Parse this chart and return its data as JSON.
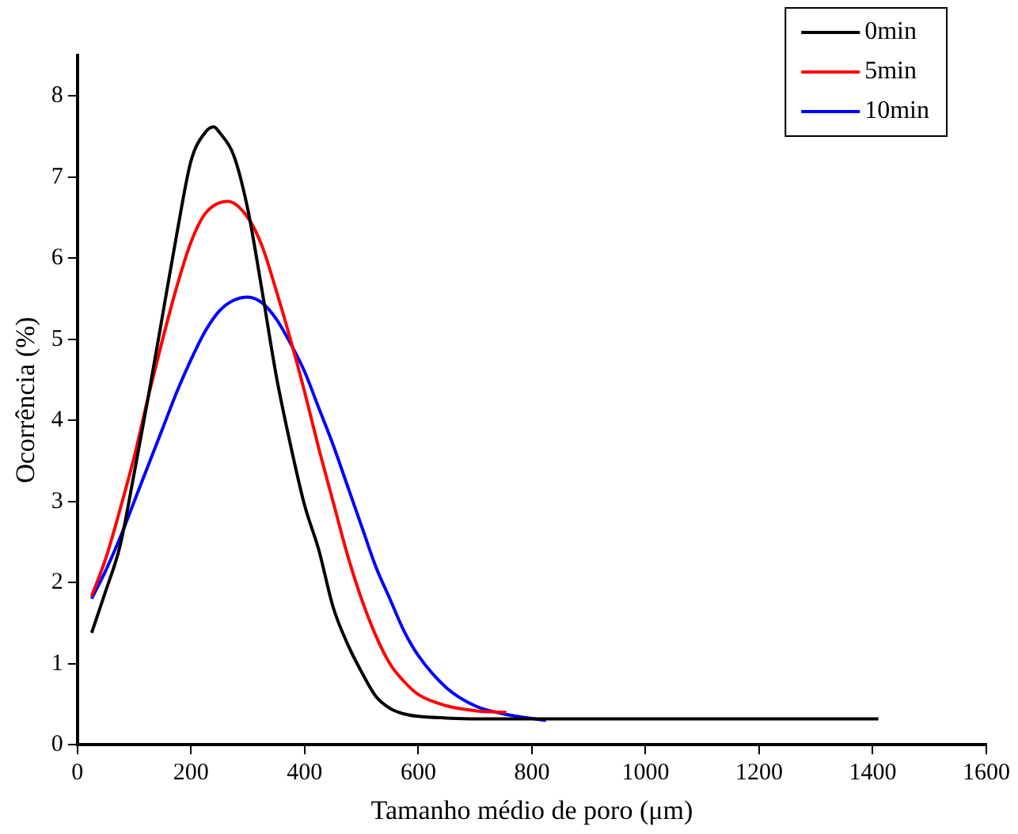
{
  "chart_data": {
    "type": "line",
    "xlabel": "Tamanho médio de poro (μm)",
    "ylabel": "Ocorrência (%)",
    "xlim": [
      0,
      1600
    ],
    "ylim": [
      0,
      8.5
    ],
    "xticks": [
      0,
      200,
      400,
      600,
      800,
      1000,
      1200,
      1400,
      1600
    ],
    "yticks": [
      0,
      1,
      2,
      3,
      4,
      5,
      6,
      7,
      8
    ],
    "grid": false,
    "legend": "top right",
    "marker": "none",
    "line_style": "solid",
    "series": [
      {
        "name": "0min",
        "color": "#000000",
        "x": [
          25,
          50,
          75,
          100,
          125,
          150,
          175,
          200,
          225,
          240,
          250,
          275,
          300,
          325,
          350,
          375,
          400,
          425,
          450,
          475,
          500,
          525,
          550,
          575,
          600,
          650,
          700,
          800,
          1000,
          1200,
          1410
        ],
        "values": [
          1.38,
          1.9,
          2.45,
          3.35,
          4.3,
          5.3,
          6.3,
          7.2,
          7.55,
          7.62,
          7.55,
          7.27,
          6.6,
          5.6,
          4.55,
          3.7,
          2.95,
          2.4,
          1.7,
          1.25,
          0.9,
          0.6,
          0.45,
          0.38,
          0.35,
          0.33,
          0.32,
          0.32,
          0.32,
          0.32,
          0.32
        ]
      },
      {
        "name": "5min",
        "color": "#ff0000",
        "x": [
          25,
          50,
          75,
          100,
          125,
          150,
          175,
          200,
          225,
          265,
          300,
          325,
          350,
          375,
          400,
          425,
          450,
          475,
          500,
          525,
          550,
          575,
          600,
          650,
          700,
          755
        ],
        "values": [
          1.83,
          2.3,
          2.9,
          3.55,
          4.3,
          5.0,
          5.65,
          6.2,
          6.55,
          6.7,
          6.5,
          6.15,
          5.6,
          5.0,
          4.35,
          3.65,
          3.0,
          2.35,
          1.8,
          1.35,
          1.0,
          0.78,
          0.62,
          0.48,
          0.42,
          0.4
        ]
      },
      {
        "name": "10min",
        "color": "#0000ff",
        "x": [
          25,
          50,
          75,
          100,
          125,
          150,
          175,
          200,
          225,
          250,
          275,
          300,
          325,
          350,
          375,
          400,
          425,
          450,
          475,
          500,
          525,
          550,
          575,
          600,
          650,
          700,
          750,
          825
        ],
        "values": [
          1.8,
          2.15,
          2.55,
          3.0,
          3.45,
          3.9,
          4.35,
          4.75,
          5.1,
          5.35,
          5.48,
          5.52,
          5.45,
          5.25,
          4.95,
          4.6,
          4.15,
          3.7,
          3.2,
          2.7,
          2.2,
          1.8,
          1.4,
          1.1,
          0.7,
          0.48,
          0.38,
          0.3
        ]
      }
    ]
  }
}
